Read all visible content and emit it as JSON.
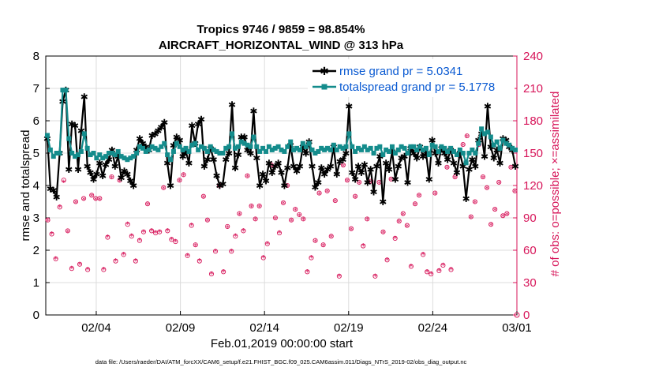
{
  "chart_data": {
    "type": "line",
    "title_line1": "Tropics 9746 / 9859 = 98.854%",
    "title_line2": "AIRCRAFT_HORIZONTAL_WIND @ 313 hPa",
    "ylabel_left": "rmse and totalspread",
    "ylabel_right": "# of obs: o=possible; ×=assimilated",
    "xlabel": "Feb.01,2019 00:00:00 start",
    "footer": "data file: /Users/raeder/DAI/ATM_forcXX/CAM6_setup/f.e21.FHIST_BGC.f09_025.CAM6assim.011/Diags_NTrS_2019-02/obs_diag_output.nc",
    "x_range_days": [
      1.0,
      29.0
    ],
    "ylim_left": [
      0,
      8
    ],
    "ylim_right": [
      0,
      240
    ],
    "yticks_left": [
      "0",
      "1",
      "2",
      "3",
      "4",
      "5",
      "6",
      "7",
      "8"
    ],
    "yticks_right": [
      "0",
      "30",
      "60",
      "90",
      "120",
      "150",
      "180",
      "210",
      "240"
    ],
    "xticks": [
      {
        "day": 4,
        "label": "02/04"
      },
      {
        "day": 9,
        "label": "02/09"
      },
      {
        "day": 14,
        "label": "02/14"
      },
      {
        "day": 19,
        "label": "02/19"
      },
      {
        "day": 24,
        "label": "02/24"
      },
      {
        "day": 29,
        "label": "03/01"
      }
    ],
    "grid": true,
    "legend_position": "top-right",
    "colors": {
      "rmse": "#000000",
      "spread": "#148c8c",
      "obs": "#d7165a",
      "legend_text": "#0a5ad2",
      "right_axis": "#d7165a"
    },
    "series": [
      {
        "name": "rmse grand pr = 5.0341",
        "values": [
          5.45,
          3.9,
          3.85,
          3.65,
          5.0,
          6.6,
          6.95,
          4.5,
          5.9,
          5.85,
          4.5,
          5.7,
          6.75,
          4.6,
          4.4,
          4.2,
          4.35,
          4.7,
          4.3,
          4.65,
          4.8,
          5.1,
          4.6,
          4.9,
          4.25,
          4.45,
          4.35,
          4.15,
          4.0,
          5.1,
          5.45,
          5.3,
          5.2,
          5.1,
          5.55,
          5.6,
          5.7,
          5.8,
          5.95,
          4.7,
          4.0,
          5.25,
          5.5,
          5.4,
          4.9,
          5.05,
          4.7,
          5.85,
          5.3,
          5.9,
          6.05,
          4.6,
          4.8,
          5.15,
          4.8,
          4.3,
          4.0,
          4.05,
          4.8,
          5.0,
          6.5,
          4.55,
          4.95,
          5.5,
          5.5,
          5.1,
          5.0,
          6.3,
          4.85,
          4.0,
          4.35,
          4.15,
          4.7,
          4.4,
          4.6,
          4.7,
          4.4,
          4.0,
          4.55,
          5.25,
          4.6,
          4.45,
          4.6,
          5.2,
          5.0,
          5.35,
          4.6,
          3.95,
          4.1,
          4.55,
          4.35,
          4.5,
          4.6,
          5.2,
          4.35,
          4.75,
          4.8,
          5.0,
          6.45,
          4.4,
          4.2,
          4.6,
          4.4,
          4.65,
          4.1,
          4.5,
          3.8,
          4.6,
          4.9,
          3.5,
          4.7,
          4.5,
          5.05,
          4.2,
          4.6,
          4.85,
          4.9,
          4.1,
          5.15,
          5.0,
          4.85,
          5.2,
          4.9,
          5.0,
          4.2,
          5.4,
          5.0,
          4.7,
          5.15,
          5.0,
          4.8,
          5.1,
          4.7,
          4.4,
          5.0,
          4.6,
          3.6,
          4.5,
          4.8,
          4.6,
          5.4,
          5.6,
          4.9,
          6.45,
          5.2,
          4.85,
          5.1,
          4.7,
          5.45,
          5.4,
          5.2,
          5.1,
          4.6
        ]
      },
      {
        "name": "totalspread grand pr = 5.1778",
        "values": [
          5.55,
          5.1,
          4.9,
          5.0,
          5.0,
          6.95,
          6.95,
          5.45,
          5.0,
          4.9,
          4.95,
          5.05,
          5.6,
          5.15,
          4.95,
          5.0,
          4.85,
          4.95,
          4.85,
          4.9,
          5.0,
          5.0,
          4.95,
          5.05,
          4.9,
          4.85,
          4.8,
          4.85,
          4.9,
          5.0,
          5.2,
          5.15,
          5.05,
          5.1,
          5.2,
          5.15,
          5.1,
          5.2,
          5.3,
          4.95,
          4.8,
          5.05,
          5.3,
          5.2,
          5.1,
          5.15,
          5.05,
          5.25,
          5.3,
          5.1,
          5.2,
          5.15,
          5.05,
          5.2,
          5.1,
          5.05,
          5.0,
          5.0,
          5.15,
          5.2,
          5.6,
          5.15,
          5.2,
          5.35,
          5.3,
          5.25,
          5.2,
          5.5,
          5.2,
          5.05,
          5.15,
          5.05,
          5.2,
          5.1,
          5.15,
          5.2,
          5.1,
          5.05,
          5.2,
          5.35,
          5.1,
          5.15,
          5.1,
          5.3,
          5.2,
          5.3,
          5.1,
          5.0,
          5.05,
          5.15,
          5.1,
          5.15,
          5.1,
          5.25,
          5.1,
          5.2,
          5.15,
          5.2,
          5.6,
          5.2,
          5.05,
          5.15,
          5.1,
          5.2,
          5.1,
          5.15,
          5.0,
          5.15,
          5.2,
          4.95,
          5.1,
          5.05,
          5.2,
          5.0,
          5.1,
          5.2,
          5.15,
          5.0,
          5.2,
          5.2,
          5.1,
          5.2,
          5.1,
          5.15,
          4.95,
          5.25,
          5.2,
          5.05,
          5.2,
          5.15,
          5.05,
          5.15,
          5.05,
          4.95,
          5.1,
          5.0,
          4.7,
          5.0,
          5.1,
          5.0,
          5.3,
          5.75,
          5.6,
          5.65,
          5.5,
          5.25,
          5.35,
          5.15,
          5.4,
          5.3,
          5.25,
          5.15,
          5.1
        ]
      },
      {
        "name": "obs_possible",
        "axis": "right",
        "values": [
          88,
          75,
          52,
          100,
          125,
          78,
          43,
          105,
          47,
          108,
          42,
          111,
          108,
          108,
          42,
          72,
          128,
          50,
          125,
          56,
          84,
          73,
          50,
          69,
          77,
          103,
          78,
          76,
          77,
          118,
          78,
          70,
          68,
          125,
          130,
          55,
          83,
          65,
          50,
          110,
          88,
          38,
          59,
          120,
          40,
          82,
          59,
          73,
          94,
          78,
          129,
          101,
          89,
          101,
          53,
          66,
          139,
          90,
          76,
          104,
          120,
          88,
          98,
          93,
          89,
          40,
          53,
          69,
          113,
          65,
          115,
          73,
          106,
          36,
          139,
          125,
          80,
          110,
          123,
          64,
          89,
          124,
          36,
          123,
          77,
          51,
          126,
          71,
          87,
          94,
          83,
          45,
          103,
          111,
          56,
          40,
          38,
          113,
          41,
          46,
          137,
          42,
          128,
          148,
          158,
          166,
          91,
          105,
          158,
          128,
          118,
          84,
          98,
          123,
          92,
          94,
          137,
          115
        ]
      },
      {
        "name": "obs_assimilated",
        "axis": "right",
        "values": [
          87,
          75,
          52,
          100,
          123,
          77,
          43,
          104,
          47,
          107,
          42,
          110,
          107,
          107,
          42,
          72,
          127,
          50,
          124,
          56,
          84,
          73,
          50,
          69,
          77,
          102,
          78,
          76,
          77,
          117,
          78,
          70,
          68,
          124,
          129,
          55,
          83,
          64,
          50,
          109,
          87,
          38,
          59,
          119,
          40,
          81,
          59,
          73,
          93,
          78,
          128,
          100,
          88,
          100,
          53,
          66,
          138,
          89,
          76,
          103,
          119,
          87,
          97,
          92,
          88,
          40,
          53,
          68,
          112,
          64,
          114,
          72,
          105,
          36,
          138,
          124,
          79,
          109,
          122,
          64,
          88,
          123,
          36,
          122,
          76,
          51,
          125,
          71,
          86,
          93,
          82,
          45,
          102,
          110,
          56,
          40,
          38,
          112,
          41,
          46,
          136,
          42,
          127,
          147,
          157,
          165,
          90,
          104,
          157,
          127,
          117,
          83,
          97,
          122,
          91,
          93,
          136,
          114
        ]
      }
    ]
  }
}
